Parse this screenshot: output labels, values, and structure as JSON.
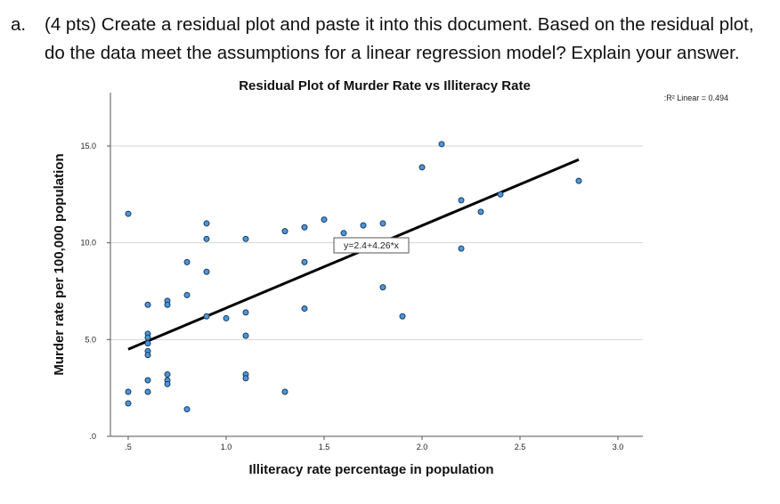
{
  "question": {
    "letter": "a.",
    "line1": "(4 pts) Create a residual plot and paste it into this document. Based on the residual plot,",
    "line2": "do the data meet the assumptions for a linear regression model? Explain your answer."
  },
  "chart_data": {
    "type": "scatter",
    "title": "Residual Plot of Murder Rate vs Illiteracy Rate",
    "xlabel": "Illiteracy rate percentage in population",
    "ylabel": "Murder rate per 100,000 population",
    "xlim": [
      0.5,
      3.0
    ],
    "ylim": [
      0.0,
      16.0
    ],
    "x_ticks": [
      0.5,
      1.0,
      1.5,
      2.0,
      2.5,
      3.0
    ],
    "x_tick_labels": [
      ".5",
      "1.0",
      "1.5",
      "2.0",
      "2.5",
      "3.0"
    ],
    "y_ticks": [
      0.0,
      5.0,
      10.0,
      15.0
    ],
    "y_tick_labels": [
      ".0",
      "5.0",
      "10.0",
      "15.0"
    ],
    "grid": "horizontal",
    "legend": "top-right",
    "r2_label": ":R² Linear = 0.494",
    "fit_line": {
      "intercept": 2.4,
      "slope": 4.26,
      "x_range": [
        0.5,
        2.8
      ],
      "label": "y=2.4+4.26*x"
    },
    "marker_color": "#4a97dc",
    "line_color": "#000000",
    "points": [
      {
        "x": 0.5,
        "y": 11.5
      },
      {
        "x": 0.5,
        "y": 2.3
      },
      {
        "x": 0.5,
        "y": 1.7
      },
      {
        "x": 0.6,
        "y": 6.8
      },
      {
        "x": 0.6,
        "y": 5.3
      },
      {
        "x": 0.6,
        "y": 5.1
      },
      {
        "x": 0.6,
        "y": 4.8
      },
      {
        "x": 0.6,
        "y": 4.4
      },
      {
        "x": 0.6,
        "y": 4.2
      },
      {
        "x": 0.6,
        "y": 2.9
      },
      {
        "x": 0.6,
        "y": 2.3
      },
      {
        "x": 0.7,
        "y": 7.0
      },
      {
        "x": 0.7,
        "y": 6.8
      },
      {
        "x": 0.7,
        "y": 3.2
      },
      {
        "x": 0.7,
        "y": 2.9
      },
      {
        "x": 0.7,
        "y": 2.7
      },
      {
        "x": 0.8,
        "y": 9.0
      },
      {
        "x": 0.8,
        "y": 7.3
      },
      {
        "x": 0.8,
        "y": 1.4
      },
      {
        "x": 0.9,
        "y": 11.0
      },
      {
        "x": 0.9,
        "y": 10.2
      },
      {
        "x": 0.9,
        "y": 8.5
      },
      {
        "x": 0.9,
        "y": 6.2
      },
      {
        "x": 1.0,
        "y": 6.1
      },
      {
        "x": 1.1,
        "y": 10.2
      },
      {
        "x": 1.1,
        "y": 6.4
      },
      {
        "x": 1.1,
        "y": 5.2
      },
      {
        "x": 1.1,
        "y": 3.2
      },
      {
        "x": 1.1,
        "y": 3.0
      },
      {
        "x": 1.3,
        "y": 10.6
      },
      {
        "x": 1.3,
        "y": 2.3
      },
      {
        "x": 1.4,
        "y": 10.8
      },
      {
        "x": 1.4,
        "y": 9.0
      },
      {
        "x": 1.4,
        "y": 6.6
      },
      {
        "x": 1.5,
        "y": 11.2
      },
      {
        "x": 1.6,
        "y": 10.5
      },
      {
        "x": 1.7,
        "y": 10.9
      },
      {
        "x": 1.8,
        "y": 11.0
      },
      {
        "x": 1.8,
        "y": 7.7
      },
      {
        "x": 1.9,
        "y": 6.2
      },
      {
        "x": 2.0,
        "y": 13.9
      },
      {
        "x": 2.1,
        "y": 15.1
      },
      {
        "x": 2.2,
        "y": 12.2
      },
      {
        "x": 2.2,
        "y": 9.7
      },
      {
        "x": 2.3,
        "y": 11.6
      },
      {
        "x": 2.4,
        "y": 12.5
      },
      {
        "x": 2.8,
        "y": 13.2
      }
    ]
  }
}
